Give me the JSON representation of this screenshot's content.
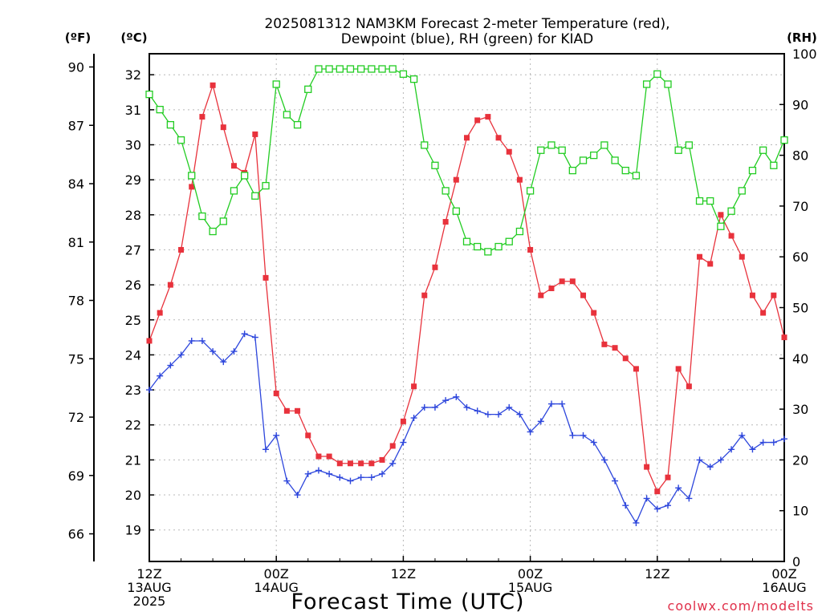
{
  "chart_data": {
    "type": "line",
    "title_line1": "2025081312 NAM3KM Forecast 2-meter Temperature (red),",
    "title_line2": "Dewpoint (blue), RH (green) for KIAD",
    "xlabel": "Forecast Time (UTC)",
    "credit": "coolwx.com/modelts",
    "left_unit_f": "(ºF)",
    "left_unit_c": "(ºC)",
    "right_unit": "(RH)",
    "x_range_hours": [
      0,
      60
    ],
    "celsius_range": [
      18.1,
      32.6
    ],
    "rh_range": [
      0,
      100
    ],
    "fahrenheit_ticks": [
      66,
      69,
      72,
      75,
      78,
      81,
      84,
      87,
      90
    ],
    "celsius_ticks": [
      19,
      20,
      21,
      22,
      23,
      24,
      25,
      26,
      27,
      28,
      29,
      30,
      31,
      32
    ],
    "rh_ticks": [
      0,
      10,
      20,
      30,
      40,
      50,
      60,
      70,
      80,
      90,
      100
    ],
    "x_ticks": [
      {
        "hour": 0,
        "lines": [
          "12Z",
          "13AUG",
          "2025"
        ]
      },
      {
        "hour": 12,
        "lines": [
          "00Z",
          "14AUG"
        ]
      },
      {
        "hour": 24,
        "lines": [
          "12Z"
        ]
      },
      {
        "hour": 36,
        "lines": [
          "00Z",
          "15AUG"
        ]
      },
      {
        "hour": 48,
        "lines": [
          "12Z"
        ]
      },
      {
        "hour": 60,
        "lines": [
          "00Z",
          "16AUG"
        ]
      }
    ],
    "grid": true,
    "series": [
      {
        "name": "Temperature",
        "units": "celsius",
        "color": "#e8323c",
        "marker": "filled-square",
        "x": [
          0,
          1,
          2,
          3,
          4,
          5,
          6,
          7,
          8,
          9,
          10,
          11,
          12,
          13,
          14,
          15,
          16,
          17,
          18,
          19,
          20,
          21,
          22,
          23,
          24,
          25,
          26,
          27,
          28,
          29,
          30,
          31,
          32,
          33,
          34,
          35,
          36,
          37,
          38,
          39,
          40,
          41,
          42,
          43,
          44,
          45,
          46,
          47,
          48,
          49,
          50,
          51,
          52,
          53,
          54,
          55,
          56,
          57,
          58,
          59,
          60
        ],
        "values": [
          24.4,
          25.2,
          26.0,
          27.0,
          28.8,
          30.8,
          31.7,
          30.5,
          29.4,
          29.2,
          30.3,
          26.2,
          22.9,
          22.4,
          22.4,
          21.7,
          21.1,
          21.1,
          20.9,
          20.9,
          20.9,
          20.9,
          21.0,
          21.4,
          22.1,
          23.1,
          25.7,
          26.5,
          27.8,
          29.0,
          30.2,
          30.7,
          30.8,
          30.2,
          29.8,
          29.0,
          27.0,
          25.7,
          25.9,
          26.1,
          26.1,
          25.7,
          25.2,
          24.3,
          24.2,
          23.9,
          23.6,
          20.8,
          20.1,
          20.5,
          23.6,
          23.1,
          26.8,
          26.6,
          28.0,
          27.4,
          26.8,
          25.7,
          25.2,
          25.7,
          24.5
        ]
      },
      {
        "name": "Dewpoint",
        "units": "celsius",
        "color": "#2d46dc",
        "marker": "plus",
        "x": [
          0,
          1,
          2,
          3,
          4,
          5,
          6,
          7,
          8,
          9,
          10,
          11,
          12,
          13,
          14,
          15,
          16,
          17,
          18,
          19,
          20,
          21,
          22,
          23,
          24,
          25,
          26,
          27,
          28,
          29,
          30,
          31,
          32,
          33,
          34,
          35,
          36,
          37,
          38,
          39,
          40,
          41,
          42,
          43,
          44,
          45,
          46,
          47,
          48,
          49,
          50,
          51,
          52,
          53,
          54,
          55,
          56,
          57,
          58,
          59,
          60
        ],
        "values": [
          23.0,
          23.4,
          23.7,
          24.0,
          24.4,
          24.4,
          24.1,
          23.8,
          24.1,
          24.6,
          24.5,
          21.3,
          21.7,
          20.4,
          20.0,
          20.6,
          20.7,
          20.6,
          20.5,
          20.4,
          20.5,
          20.5,
          20.6,
          20.9,
          21.5,
          22.2,
          22.5,
          22.5,
          22.7,
          22.8,
          22.5,
          22.4,
          22.3,
          22.3,
          22.5,
          22.3,
          21.8,
          22.1,
          22.6,
          22.6,
          21.7,
          21.7,
          21.5,
          21.0,
          20.4,
          19.7,
          19.2,
          19.9,
          19.6,
          19.7,
          20.2,
          19.9,
          21.0,
          20.8,
          21.0,
          21.3,
          21.7,
          21.3,
          21.5,
          21.5,
          21.6
        ]
      },
      {
        "name": "RH",
        "units": "percent",
        "color": "#22cc22",
        "marker": "open-square",
        "x": [
          0,
          1,
          2,
          3,
          4,
          5,
          6,
          7,
          8,
          9,
          10,
          11,
          12,
          13,
          14,
          15,
          16,
          17,
          18,
          19,
          20,
          21,
          22,
          23,
          24,
          25,
          26,
          27,
          28,
          29,
          30,
          31,
          32,
          33,
          34,
          35,
          36,
          37,
          38,
          39,
          40,
          41,
          42,
          43,
          44,
          45,
          46,
          47,
          48,
          49,
          50,
          51,
          52,
          53,
          54,
          55,
          56,
          57,
          58,
          59,
          60
        ],
        "values": [
          92,
          89,
          86,
          83,
          76,
          68,
          65,
          67,
          73,
          76,
          72,
          74,
          94,
          88,
          86,
          93,
          97,
          97,
          97,
          97,
          97,
          97,
          97,
          97,
          96,
          95,
          82,
          78,
          73,
          69,
          63,
          62,
          61,
          62,
          63,
          65,
          73,
          81,
          82,
          81,
          77,
          79,
          80,
          82,
          79,
          77,
          76,
          94,
          96,
          94,
          81,
          82,
          71,
          71,
          66,
          69,
          73,
          77,
          81,
          78,
          83
        ]
      }
    ]
  }
}
